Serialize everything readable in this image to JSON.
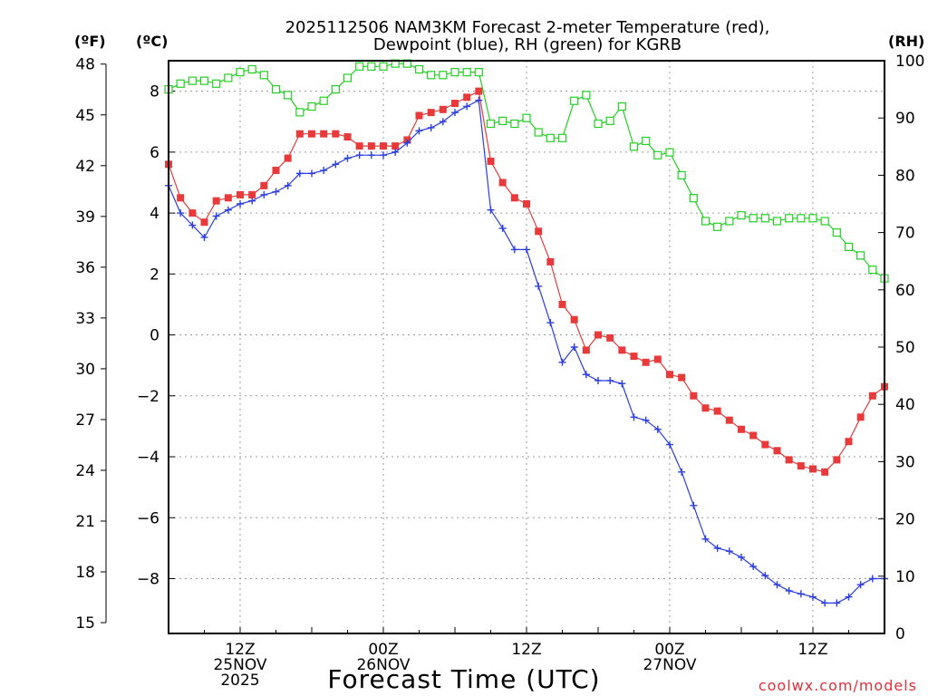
{
  "chart_data": {
    "type": "line",
    "title": [
      "2025112506 NAM3KM Forecast 2-meter Temperature (red),",
      "Dewpoint (blue), RH (green) for KGRB"
    ],
    "xlabel": "Forecast Time (UTC)",
    "credit": "coolwx.com/models",
    "units": {
      "left_outer": "(ºF)",
      "left_inner": "(ºC)",
      "right": "(RH)"
    },
    "x_range_hours": [
      0,
      60
    ],
    "x_ticks": [
      {
        "hour": 6,
        "lines": [
          "12Z",
          "25NOV",
          "2025"
        ]
      },
      {
        "hour": 18,
        "lines": [
          "00Z",
          "26NOV"
        ]
      },
      {
        "hour": 30,
        "lines": [
          "12Z"
        ]
      },
      {
        "hour": 42,
        "lines": [
          "00Z",
          "27NOV"
        ]
      },
      {
        "hour": 54,
        "lines": [
          "12Z"
        ]
      }
    ],
    "celsius_range": [
      -9.8,
      9.0
    ],
    "celsius_ticks": [
      "-8",
      "-6",
      "-4",
      "-2",
      "0",
      "2",
      "4",
      "6",
      "8"
    ],
    "fahrenheit_ticks": [
      "15",
      "18",
      "21",
      "24",
      "27",
      "30",
      "33",
      "36",
      "39",
      "42",
      "45",
      "48"
    ],
    "rh_range": [
      0,
      100
    ],
    "rh_ticks": [
      "0",
      "10",
      "20",
      "30",
      "40",
      "50",
      "60",
      "70",
      "80",
      "90",
      "100"
    ],
    "series": [
      {
        "name": "Temperature (C)",
        "color": "#e83a3a",
        "marker": "filled-square",
        "x": [
          0,
          1,
          2,
          3,
          4,
          5,
          6,
          7,
          8,
          9,
          10,
          11,
          12,
          13,
          14,
          15,
          16,
          17,
          18,
          19,
          20,
          21,
          22,
          23,
          24,
          25,
          26,
          27,
          28,
          29,
          30,
          31,
          32,
          33,
          34,
          35,
          36,
          37,
          38,
          39,
          40,
          41,
          42,
          43,
          44,
          45,
          46,
          47,
          48,
          49,
          50,
          51,
          52,
          53,
          54,
          55,
          56,
          57,
          58,
          59,
          60
        ],
        "values": [
          5.6,
          4.5,
          4.0,
          3.7,
          4.4,
          4.5,
          4.6,
          4.6,
          4.9,
          5.4,
          5.8,
          6.6,
          6.6,
          6.6,
          6.6,
          6.5,
          6.2,
          6.2,
          6.2,
          6.2,
          6.4,
          7.2,
          7.3,
          7.4,
          7.6,
          7.8,
          8.0,
          5.7,
          5.0,
          4.5,
          4.3,
          3.4,
          2.4,
          1.0,
          0.5,
          -0.5,
          0.0,
          -0.1,
          -0.5,
          -0.7,
          -0.9,
          -0.8,
          -1.3,
          -1.4,
          -2.0,
          -2.4,
          -2.5,
          -2.8,
          -3.1,
          -3.3,
          -3.6,
          -3.8,
          -4.1,
          -4.3,
          -4.4,
          -4.5,
          -4.1,
          -3.5,
          -2.7,
          -2.0,
          -1.7
        ]
      },
      {
        "name": "Dewpoint (C)",
        "color": "#2a3ee0",
        "marker": "plus",
        "x": [
          0,
          1,
          2,
          3,
          4,
          5,
          6,
          7,
          8,
          9,
          10,
          11,
          12,
          13,
          14,
          15,
          16,
          17,
          18,
          19,
          20,
          21,
          22,
          23,
          24,
          25,
          26,
          27,
          28,
          29,
          30,
          31,
          32,
          33,
          34,
          35,
          36,
          37,
          38,
          39,
          40,
          41,
          42,
          43,
          44,
          45,
          46,
          47,
          48,
          49,
          50,
          51,
          52,
          53,
          54,
          55,
          56,
          57,
          58,
          59,
          60
        ],
        "values": [
          4.9,
          4.0,
          3.6,
          3.2,
          3.9,
          4.1,
          4.3,
          4.4,
          4.6,
          4.7,
          4.9,
          5.3,
          5.3,
          5.4,
          5.6,
          5.8,
          5.9,
          5.9,
          5.9,
          6.0,
          6.3,
          6.7,
          6.8,
          7.0,
          7.3,
          7.5,
          7.7,
          4.1,
          3.5,
          2.8,
          2.8,
          1.6,
          0.4,
          -0.9,
          -0.4,
          -1.3,
          -1.5,
          -1.5,
          -1.6,
          -2.7,
          -2.8,
          -3.1,
          -3.6,
          -4.5,
          -5.6,
          -6.7,
          -7.0,
          -7.1,
          -7.3,
          -7.6,
          -7.9,
          -8.2,
          -8.4,
          -8.5,
          -8.6,
          -8.8,
          -8.8,
          -8.6,
          -8.2,
          -8.0,
          -8.0
        ]
      },
      {
        "name": "RH (%)",
        "color": "#22d022",
        "marker": "open-square",
        "x": [
          0,
          1,
          2,
          3,
          4,
          5,
          6,
          7,
          8,
          9,
          10,
          11,
          12,
          13,
          14,
          15,
          16,
          17,
          18,
          19,
          20,
          21,
          22,
          23,
          24,
          25,
          26,
          27,
          28,
          29,
          30,
          31,
          32,
          33,
          34,
          35,
          36,
          37,
          38,
          39,
          40,
          41,
          42,
          43,
          44,
          45,
          46,
          47,
          48,
          49,
          50,
          51,
          52,
          53,
          54,
          55,
          56,
          57,
          58,
          59,
          60
        ],
        "values": [
          95,
          96,
          96.5,
          96.5,
          96,
          97,
          98,
          98.5,
          97.5,
          95,
          94,
          91,
          92,
          93,
          95,
          97,
          99,
          99,
          99,
          99.5,
          99.5,
          98.5,
          97.5,
          97.5,
          98,
          98,
          98,
          89,
          89.5,
          89,
          90,
          87.5,
          86.5,
          86.5,
          93,
          94,
          89,
          89.5,
          92,
          85,
          86,
          83.5,
          84,
          80,
          76,
          72,
          71,
          72,
          73,
          72.5,
          72.5,
          72,
          72.5,
          72.5,
          72.5,
          72,
          70,
          67.5,
          66,
          63.5,
          62
        ]
      }
    ]
  }
}
